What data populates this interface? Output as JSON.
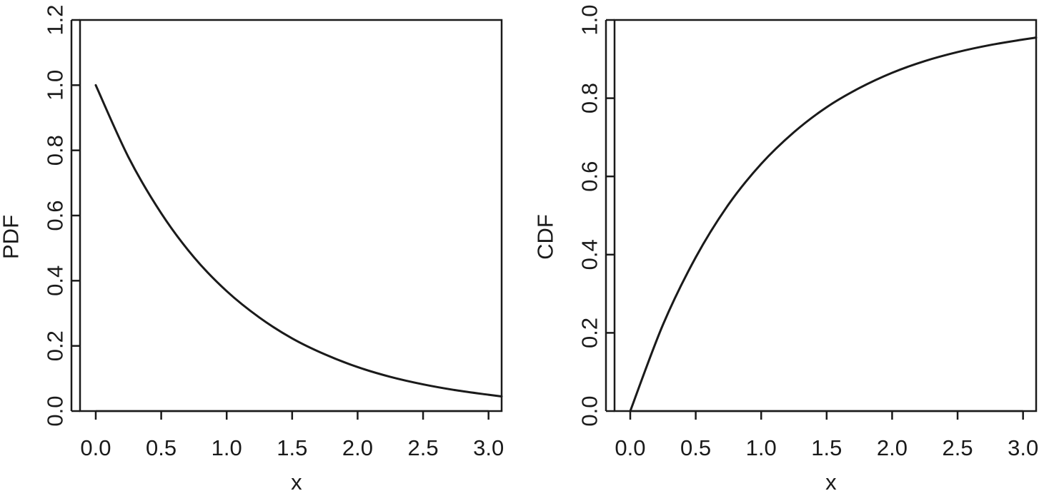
{
  "chart_data": [
    {
      "type": "line",
      "title": "",
      "xlabel": "x",
      "ylabel": "PDF",
      "xlim": [
        -0.12,
        3.1
      ],
      "ylim": [
        0.0,
        1.2
      ],
      "xticks": [
        0.0,
        0.5,
        1.0,
        1.5,
        2.0,
        2.5,
        3.0
      ],
      "xtick_labels": [
        "0.0",
        "0.5",
        "1.0",
        "1.5",
        "2.0",
        "2.5",
        "3.0"
      ],
      "yticks": [
        0.0,
        0.2,
        0.4,
        0.6,
        0.8,
        1.0,
        1.2
      ],
      "ytick_labels": [
        "0.0",
        "0.2",
        "0.4",
        "0.6",
        "0.8",
        "1.0",
        "1.2"
      ],
      "grid": false,
      "series": [
        {
          "x": [
            0.0,
            0.25,
            0.5,
            0.75,
            1.0,
            1.25,
            1.5,
            1.75,
            2.0,
            2.25,
            2.5,
            2.75,
            3.0,
            3.1
          ],
          "y": [
            1.0,
            0.779,
            0.607,
            0.472,
            0.368,
            0.287,
            0.223,
            0.174,
            0.135,
            0.105,
            0.082,
            0.064,
            0.05,
            0.045
          ]
        }
      ]
    },
    {
      "type": "line",
      "title": "",
      "xlabel": "x",
      "ylabel": "CDF",
      "xlim": [
        -0.12,
        3.1
      ],
      "ylim": [
        0.0,
        1.0
      ],
      "xticks": [
        0.0,
        0.5,
        1.0,
        1.5,
        2.0,
        2.5,
        3.0
      ],
      "xtick_labels": [
        "0.0",
        "0.5",
        "1.0",
        "1.5",
        "2.0",
        "2.5",
        "3.0"
      ],
      "yticks": [
        0.0,
        0.2,
        0.4,
        0.6,
        0.8,
        1.0
      ],
      "ytick_labels": [
        "0.0",
        "0.2",
        "0.4",
        "0.6",
        "0.8",
        "1.0"
      ],
      "grid": false,
      "series": [
        {
          "x": [
            0.0,
            0.25,
            0.5,
            0.75,
            1.0,
            1.25,
            1.5,
            1.75,
            2.0,
            2.25,
            2.5,
            2.75,
            3.0,
            3.1
          ],
          "y": [
            0.0,
            0.221,
            0.393,
            0.528,
            0.632,
            0.713,
            0.777,
            0.826,
            0.865,
            0.895,
            0.918,
            0.936,
            0.95,
            0.955
          ]
        }
      ]
    }
  ]
}
